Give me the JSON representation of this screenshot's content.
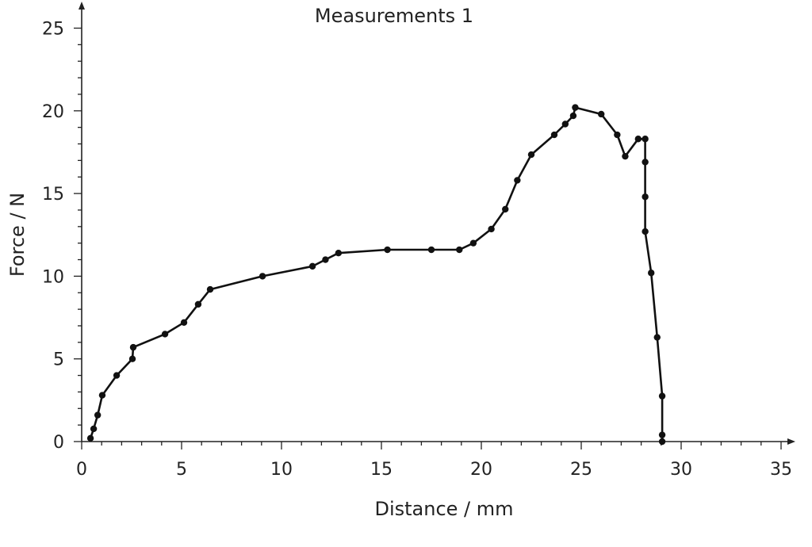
{
  "chart_data": {
    "type": "line",
    "title": "Measurements 1",
    "xlabel": "Distance / mm",
    "ylabel": "Force / N",
    "xlim": [
      0,
      35
    ],
    "ylim": [
      0,
      25
    ],
    "xticks": [
      0,
      5,
      10,
      15,
      20,
      25,
      30,
      35
    ],
    "yticks": [
      0,
      5,
      10,
      15,
      20,
      25
    ],
    "grid": false,
    "markers": true,
    "color": "#111111",
    "series": [
      {
        "x": [
          0.44,
          0.6,
          0.8,
          1.03,
          1.75,
          2.54,
          2.58,
          4.17,
          5.12,
          5.83,
          6.43,
          9.05,
          11.55,
          12.2,
          12.85,
          15.3,
          17.5,
          18.9,
          19.6,
          20.5,
          21.2,
          21.8,
          22.5,
          23.65,
          24.2,
          24.6,
          24.7,
          26.0,
          26.8,
          27.2,
          27.85,
          28.2,
          28.2,
          28.2,
          28.2,
          28.5,
          28.8,
          29.05,
          29.05,
          29.05
        ],
        "y": [
          0.2,
          0.77,
          1.6,
          2.8,
          4.0,
          5.0,
          5.7,
          6.5,
          7.2,
          8.3,
          9.2,
          10.0,
          10.6,
          11.0,
          11.4,
          11.6,
          11.6,
          11.6,
          12.0,
          12.85,
          14.05,
          15.8,
          17.35,
          18.55,
          19.2,
          19.7,
          20.2,
          19.8,
          18.55,
          17.25,
          18.3,
          18.3,
          16.9,
          14.8,
          12.7,
          10.2,
          6.3,
          2.75,
          0.4,
          0
        ]
      }
    ]
  }
}
